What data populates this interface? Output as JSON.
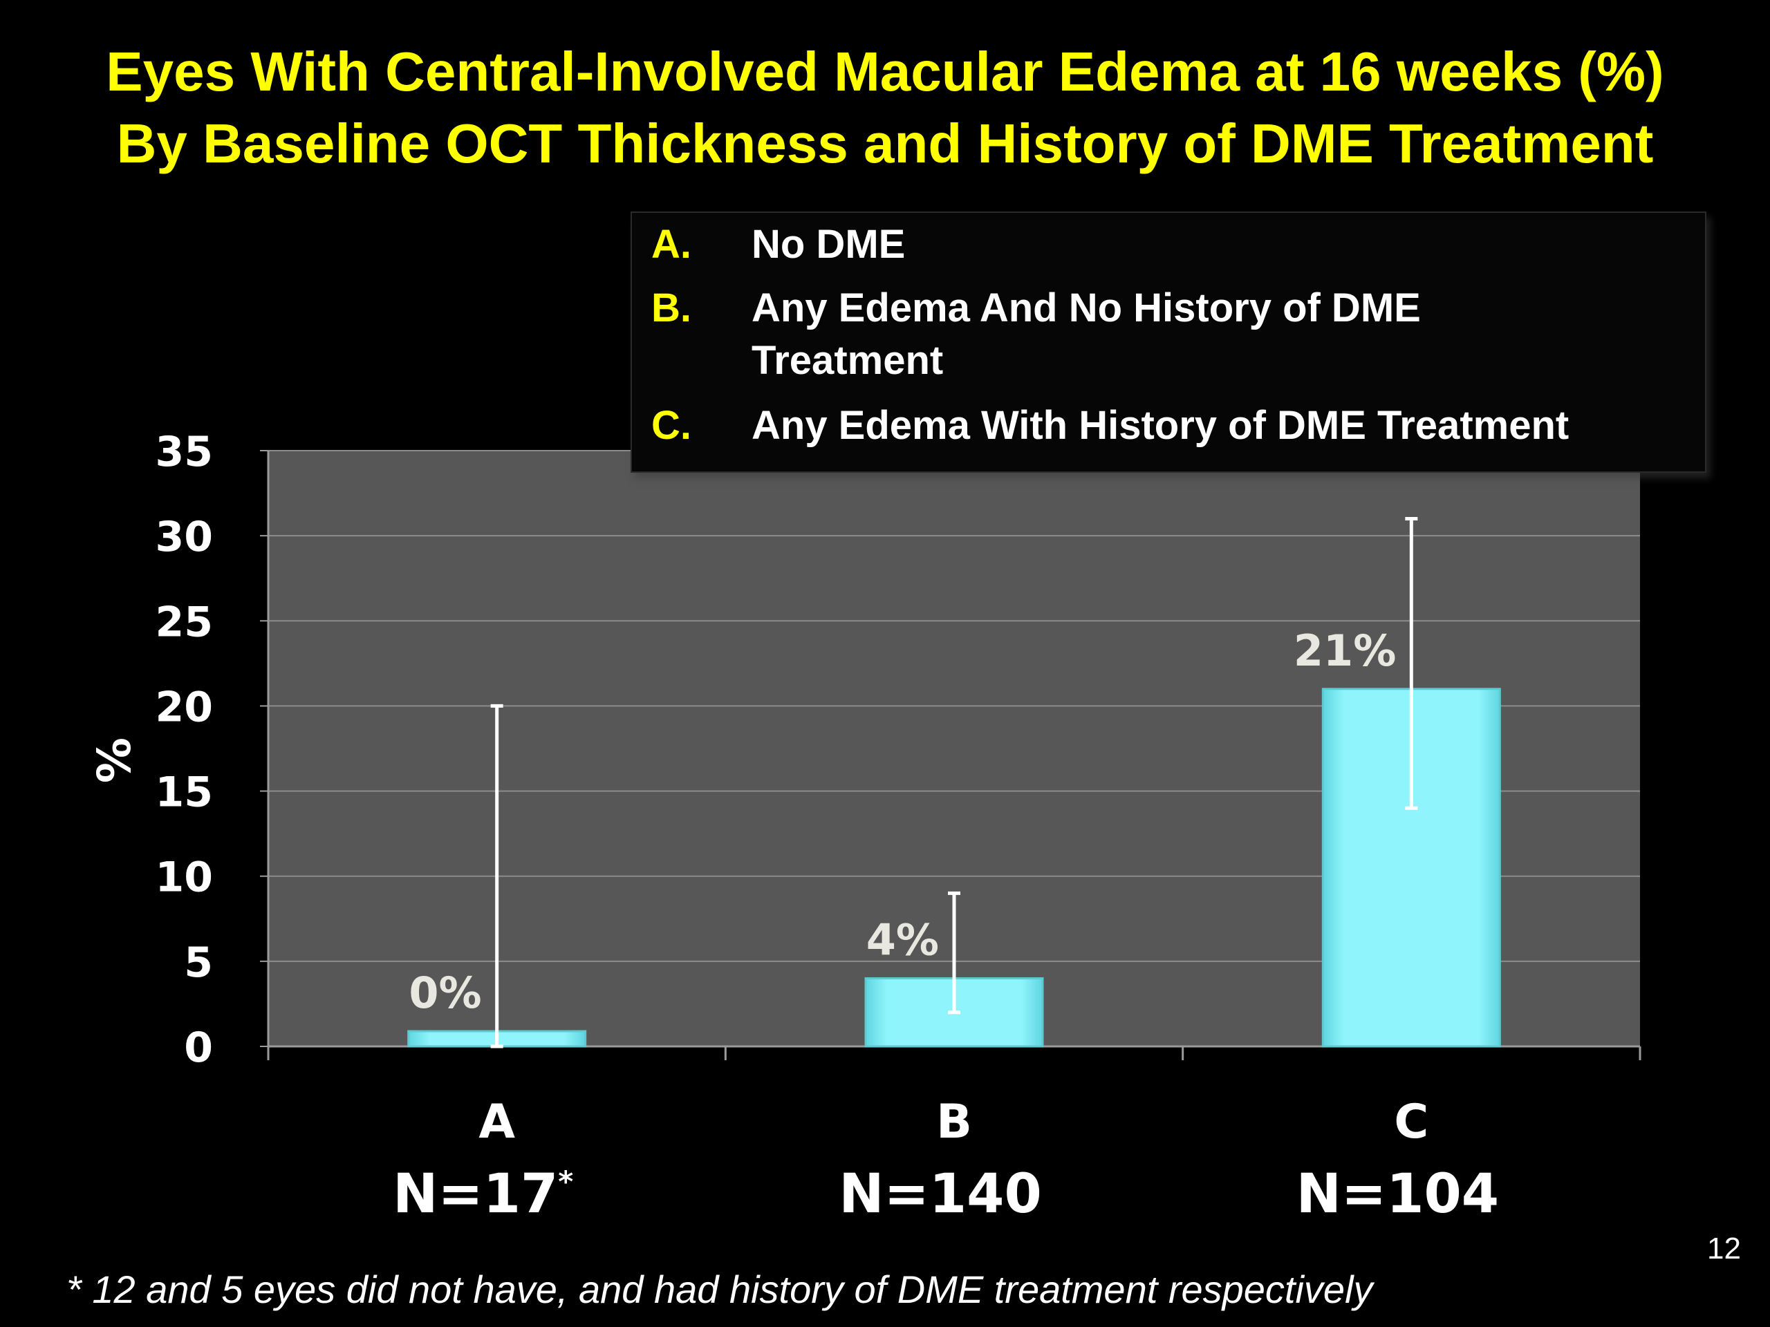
{
  "slide": {
    "title_line1": "Eyes With Central-Involved Macular Edema at 16 weeks (%)",
    "title_line2": "By Baseline OCT Thickness and History of DME Treatment",
    "footnote": "* 12 and 5 eyes did not have, and had history of DME treatment respectively",
    "page_number": "12"
  },
  "legend": {
    "items": [
      {
        "key": "A.",
        "text": "No DME"
      },
      {
        "key": "B.",
        "text": "Any Edema And No History of DME Treatment"
      },
      {
        "key": "C.",
        "text": "Any Edema With History of DME Treatment"
      }
    ]
  },
  "chart_data": {
    "type": "bar",
    "title": "Eyes With Central-Involved Macular Edema at 16 weeks (%) By Baseline OCT Thickness and History of DME Treatment",
    "ylabel": "%",
    "xlabel": "",
    "ylim": [
      0,
      35
    ],
    "yticks": [
      0,
      5,
      10,
      15,
      20,
      25,
      30,
      35
    ],
    "grid": true,
    "categories": [
      "A",
      "B",
      "C"
    ],
    "sample_sizes": [
      "N=17",
      "N=140",
      "N=104"
    ],
    "sample_size_marks": [
      "*",
      "",
      ""
    ],
    "values": [
      0,
      4,
      21
    ],
    "data_labels": [
      "0%",
      "4%",
      "21%"
    ],
    "error_bars": [
      {
        "low": 0,
        "high": 20
      },
      {
        "low": 2,
        "high": 9
      },
      {
        "low": 14,
        "high": 31
      }
    ],
    "colors": {
      "plot_background": "#575757",
      "bar_fill": "#8ff4fb",
      "bar_edge": "#5fc8d2",
      "gridline": "#8c8c8c",
      "error_bar": "#ffffff",
      "data_label": "#e8e8e0",
      "axis_text": "#ffffff"
    }
  }
}
